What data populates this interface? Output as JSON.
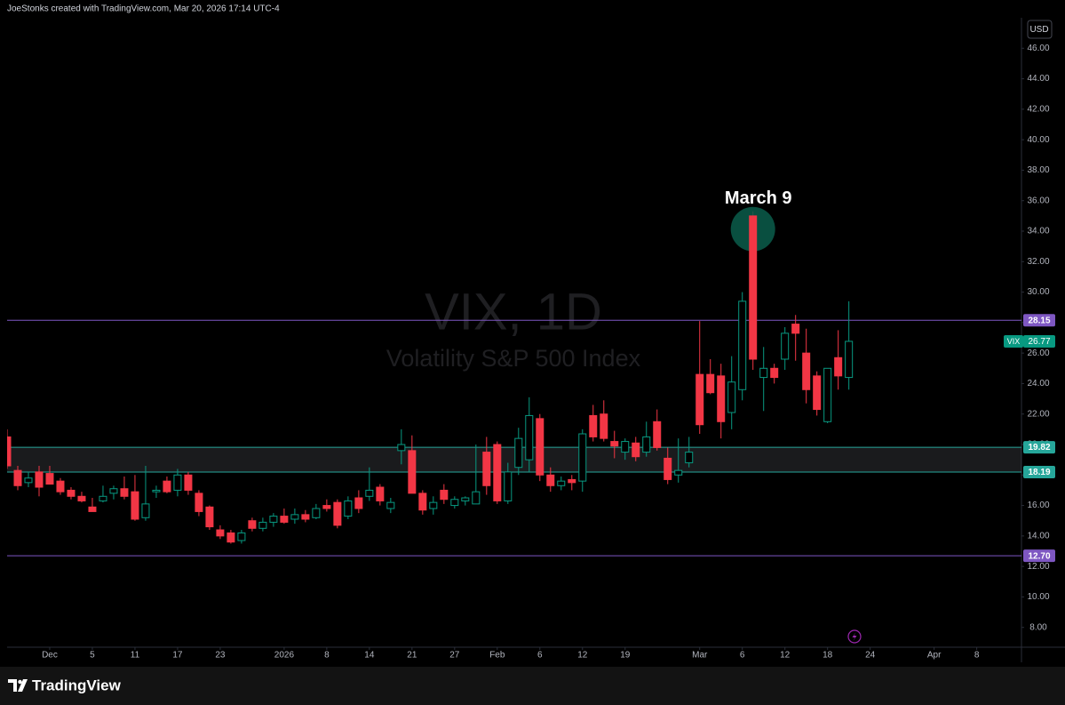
{
  "header": {
    "credit": "JoeStonks created with TradingView.com, Mar 20, 2026 17:14 UTC-4"
  },
  "footer": {
    "brand": "TradingView"
  },
  "chart_data": {
    "type": "candlestick",
    "title": "VIX, 1D",
    "subtitle": "Volatility S&P 500 Index",
    "currency": "USD",
    "up_color": "#089981",
    "down_color": "#f23645",
    "open": [
      20.5,
      18.3,
      17.5,
      18.2,
      18.1,
      17.6,
      17.0,
      16.6,
      15.9,
      16.3,
      16.8,
      17.1,
      16.9,
      15.2,
      16.9,
      17.6,
      17.0,
      18.0,
      16.8,
      15.9,
      14.4,
      14.2,
      13.7,
      15.0,
      14.5,
      14.9,
      15.3,
      15.1,
      15.4,
      15.2,
      16.0,
      16.2,
      15.3,
      16.5,
      16.6,
      17.2,
      15.8,
      19.6,
      19.6,
      16.8,
      15.8,
      17.0,
      16.0,
      16.3,
      16.1,
      19.5,
      20.0,
      16.3,
      18.5,
      19.0,
      21.7,
      18.0,
      17.3,
      17.7,
      17.6,
      21.9,
      22.0,
      20.2,
      19.5,
      20.1,
      19.5,
      21.5,
      19.1,
      18.0,
      18.8,
      24.6,
      24.6,
      24.5,
      22.1,
      23.6,
      35.0,
      24.4,
      25.0,
      25.6,
      27.9,
      26.0,
      24.5,
      21.5,
      25.7,
      24.4
    ],
    "high": [
      21.0,
      18.6,
      18.2,
      18.6,
      18.6,
      17.8,
      17.2,
      16.9,
      16.5,
      17.3,
      17.3,
      17.9,
      18.0,
      18.6,
      17.3,
      17.9,
      18.4,
      18.2,
      17.0,
      16.0,
      14.7,
      14.4,
      14.4,
      15.2,
      15.2,
      15.5,
      15.8,
      15.8,
      15.7,
      16.1,
      16.4,
      16.4,
      16.6,
      17.0,
      18.5,
      17.4,
      16.5,
      21.0,
      20.6,
      17.0,
      16.6,
      17.4,
      16.6,
      16.6,
      20.0,
      20.5,
      20.2,
      18.8,
      21.1,
      23.1,
      22.0,
      18.5,
      17.9,
      18.0,
      21.0,
      22.6,
      22.9,
      20.9,
      20.4,
      20.5,
      21.5,
      22.3,
      19.8,
      20.4,
      20.5,
      28.1,
      25.6,
      25.3,
      25.8,
      30.0,
      35.3,
      26.4,
      25.3,
      27.7,
      28.5,
      27.6,
      24.8,
      25.0,
      27.5,
      29.4
    ],
    "low": [
      18.4,
      17.0,
      17.2,
      16.6,
      17.4,
      16.7,
      16.4,
      16.2,
      15.6,
      16.2,
      16.4,
      16.4,
      15.0,
      15.0,
      16.5,
      16.8,
      16.6,
      16.7,
      15.3,
      14.4,
      13.8,
      13.5,
      13.5,
      14.3,
      14.3,
      14.6,
      14.8,
      14.8,
      14.9,
      15.1,
      15.6,
      14.5,
      15.1,
      15.5,
      16.3,
      16.0,
      15.5,
      18.7,
      16.8,
      15.4,
      15.4,
      16.1,
      15.8,
      16.0,
      16.1,
      16.7,
      16.1,
      16.1,
      18.0,
      18.2,
      17.6,
      16.9,
      17.0,
      17.0,
      16.9,
      20.2,
      20.2,
      19.1,
      19.0,
      18.9,
      19.2,
      19.6,
      17.4,
      17.5,
      18.5,
      20.7,
      23.3,
      20.4,
      21.0,
      22.9,
      24.9,
      22.2,
      24.0,
      24.9,
      25.5,
      22.7,
      21.9,
      21.4,
      23.6,
      23.6
    ],
    "close": [
      18.6,
      17.3,
      17.8,
      17.2,
      17.4,
      16.9,
      16.6,
      16.3,
      15.6,
      16.6,
      17.1,
      16.6,
      15.1,
      16.1,
      17.0,
      16.9,
      18.0,
      17.0,
      15.6,
      14.6,
      14.0,
      13.6,
      14.2,
      14.5,
      14.9,
      15.3,
      14.9,
      15.4,
      15.1,
      15.8,
      15.8,
      14.7,
      16.3,
      15.8,
      17.0,
      16.3,
      16.2,
      20.0,
      16.8,
      15.7,
      16.2,
      16.4,
      16.4,
      16.5,
      16.9,
      17.3,
      16.3,
      18.2,
      20.4,
      21.9,
      18.0,
      17.3,
      17.6,
      17.5,
      20.7,
      20.5,
      20.4,
      19.9,
      20.2,
      19.2,
      20.5,
      19.8,
      17.7,
      18.3,
      19.5,
      21.3,
      23.4,
      21.5,
      24.1,
      29.4,
      25.6,
      25.0,
      24.4,
      27.3,
      27.3,
      23.6,
      22.3,
      25.0,
      24.5,
      26.77
    ],
    "last": {
      "name": "VIX",
      "value": 26.77,
      "color": "#089981"
    },
    "levels": [
      {
        "value": 28.15,
        "color": "#7e57c2"
      },
      {
        "value": 19.82,
        "color": "#26a69a",
        "zone": true
      },
      {
        "value": 18.19,
        "color": "#26a69a",
        "zone": true
      },
      {
        "value": 12.7,
        "label": "12.70",
        "color": "#7e57c2"
      }
    ],
    "annotations": [
      {
        "text": "March 9",
        "index": 70,
        "color": "#0b5d4b"
      }
    ],
    "ylim": [
      6.7,
      48.0
    ],
    "yticks": [
      {
        "value": 8,
        "label": "8.00"
      },
      {
        "value": 10,
        "label": "10.00"
      },
      {
        "value": 12,
        "label": "12.00"
      },
      {
        "value": 14,
        "label": "14.00"
      },
      {
        "value": 16,
        "label": "16.00"
      },
      {
        "value": 18,
        "label": "18.00"
      },
      {
        "value": 20,
        "label": "20.00"
      },
      {
        "value": 22,
        "label": "22.00"
      },
      {
        "value": 24,
        "label": "24.00"
      },
      {
        "value": 26,
        "label": "26.00"
      },
      {
        "value": 28,
        "label": "28.00"
      },
      {
        "value": 30,
        "label": "30.00"
      },
      {
        "value": 32,
        "label": "32.00"
      },
      {
        "value": 34,
        "label": "34.00"
      },
      {
        "value": 36,
        "label": "36.00"
      },
      {
        "value": 38,
        "label": "38.00"
      },
      {
        "value": 40,
        "label": "40.00"
      },
      {
        "value": 42,
        "label": "42.00"
      },
      {
        "value": 44,
        "label": "44.00"
      },
      {
        "value": 46,
        "label": "46.00"
      }
    ],
    "xlim": [
      0,
      95.2
    ],
    "xticks": [
      {
        "value": 4,
        "label": "Dec"
      },
      {
        "value": 8,
        "label": "5"
      },
      {
        "value": 12,
        "label": "11"
      },
      {
        "value": 16,
        "label": "17"
      },
      {
        "value": 20,
        "label": "23"
      },
      {
        "value": 26,
        "label": "2026"
      },
      {
        "value": 30,
        "label": "8"
      },
      {
        "value": 34,
        "label": "14"
      },
      {
        "value": 38,
        "label": "21"
      },
      {
        "value": 42,
        "label": "27"
      },
      {
        "value": 46,
        "label": "Feb"
      },
      {
        "value": 50,
        "label": "6"
      },
      {
        "value": 54,
        "label": "12"
      },
      {
        "value": 58,
        "label": "19"
      },
      {
        "value": 65,
        "label": "Mar"
      },
      {
        "value": 69,
        "label": "6"
      },
      {
        "value": 73,
        "label": "12"
      },
      {
        "value": 77,
        "label": "18"
      },
      {
        "value": 81,
        "label": "24"
      },
      {
        "value": 87,
        "label": "Apr"
      },
      {
        "value": 91,
        "label": "8"
      }
    ],
    "grid": false
  }
}
